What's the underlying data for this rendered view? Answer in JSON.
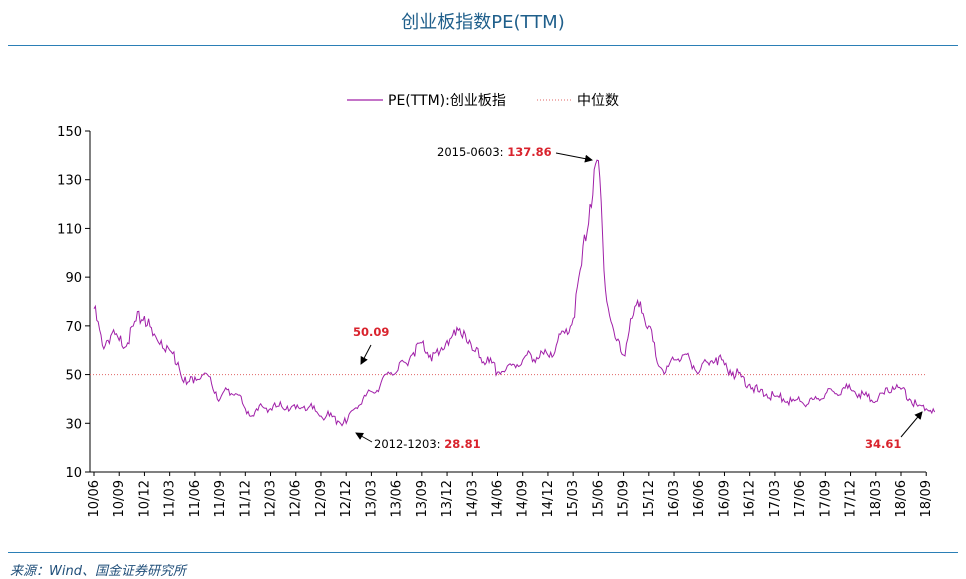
{
  "page": {
    "source": "来源：Wind、国金证券研究所"
  },
  "chart_data": {
    "type": "line",
    "title": "创业板指数PE(TTM)",
    "xlabel": "",
    "ylabel": "",
    "ylim": [
      10,
      150
    ],
    "yticks": [
      10,
      30,
      50,
      70,
      90,
      110,
      130,
      150
    ],
    "xticks": [
      "10/06",
      "10/09",
      "10/12",
      "11/03",
      "11/06",
      "11/09",
      "11/12",
      "12/03",
      "12/06",
      "12/09",
      "12/12",
      "13/03",
      "13/06",
      "13/09",
      "13/12",
      "14/03",
      "14/06",
      "14/09",
      "14/12",
      "15/03",
      "15/06",
      "15/09",
      "15/12",
      "16/03",
      "16/06",
      "16/09",
      "16/12",
      "17/03",
      "17/06",
      "17/09",
      "17/12",
      "18/03",
      "18/06",
      "18/09"
    ],
    "legend": {
      "placement": "top-center"
    },
    "colors": {
      "series": "#a020a8",
      "median": "#e06666",
      "annotation_value": "#d9232d",
      "title": "#1f5f8b",
      "rule": "#2b7fb6"
    },
    "series": [
      {
        "name": "PE(TTM):创业板指",
        "x": [
          "10/06",
          "10/07",
          "10/08",
          "10/09",
          "10/10",
          "10/11",
          "10/12",
          "11/01",
          "11/02",
          "11/03",
          "11/04",
          "11/05",
          "11/06",
          "11/07",
          "11/08",
          "11/09",
          "11/10",
          "11/11",
          "11/12",
          "12/01",
          "12/02",
          "12/03",
          "12/04",
          "12/05",
          "12/06",
          "12/07",
          "12/08",
          "12/09",
          "12/10",
          "12/11",
          "12/12",
          "13/01",
          "13/02",
          "13/03",
          "13/04",
          "13/05",
          "13/06",
          "13/07",
          "13/08",
          "13/09",
          "13/10",
          "13/11",
          "13/12",
          "14/01",
          "14/02",
          "14/03",
          "14/04",
          "14/05",
          "14/06",
          "14/07",
          "14/08",
          "14/09",
          "14/10",
          "14/11",
          "14/12",
          "15/01",
          "15/02",
          "15/03",
          "15/04",
          "15/05",
          "15/06",
          "15/07",
          "15/08",
          "15/09",
          "15/10",
          "15/11",
          "15/12",
          "16/01",
          "16/02",
          "16/03",
          "16/04",
          "16/05",
          "16/06",
          "16/07",
          "16/08",
          "16/09",
          "16/10",
          "16/11",
          "16/12",
          "17/01",
          "17/02",
          "17/03",
          "17/04",
          "17/05",
          "17/06",
          "17/07",
          "17/08",
          "17/09",
          "17/10",
          "17/11",
          "17/12",
          "18/01",
          "18/02",
          "18/03",
          "18/04",
          "18/05",
          "18/06",
          "18/07",
          "18/08",
          "18/09",
          "18/10"
        ],
        "values": [
          77,
          62,
          66,
          64,
          63,
          72,
          74,
          66,
          64,
          60,
          55,
          46,
          49,
          50,
          46,
          40,
          44,
          42,
          36,
          33,
          37,
          36,
          37,
          37,
          36,
          37,
          36,
          33,
          33,
          31,
          30,
          36,
          40,
          43,
          45,
          51,
          51,
          55,
          59,
          63,
          58,
          58,
          64,
          66,
          68,
          60,
          57,
          55,
          51,
          52,
          54,
          56,
          58,
          57,
          58,
          62,
          67,
          73,
          95,
          120,
          137.86,
          80,
          65,
          58,
          73,
          80,
          70,
          55,
          51,
          56,
          58,
          55,
          51,
          55,
          57,
          54,
          51,
          49,
          46,
          43,
          42,
          41,
          40,
          39,
          39,
          38,
          40,
          42,
          43,
          44,
          44,
          42,
          41,
          39,
          42,
          45,
          44,
          40,
          37,
          36,
          34.61
        ]
      }
    ],
    "reference_lines": [
      {
        "name": "中位数",
        "y": 50,
        "style": "dotted"
      }
    ],
    "annotations": [
      {
        "label": "2015-0603:",
        "value": "137.86"
      },
      {
        "label": "",
        "value": "50.09"
      },
      {
        "label": "2012-1203:",
        "value": "28.81"
      },
      {
        "label": "",
        "value": "34.61"
      }
    ]
  }
}
